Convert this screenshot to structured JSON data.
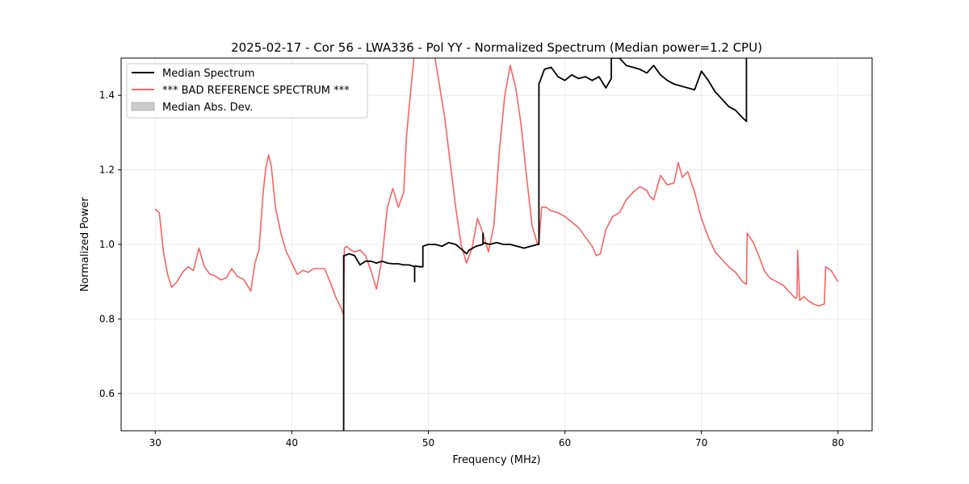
{
  "chart_data": {
    "type": "line",
    "title": "2025-02-17 - Cor 56 - LWA336 - Pol YY - Normalized Spectrum (Median power=1.2 CPU)",
    "xlabel": "Frequency (MHz)",
    "ylabel": "Normalized Power",
    "xlim": [
      27.5,
      82.5
    ],
    "ylim": [
      0.5,
      1.5
    ],
    "xticks": [
      30,
      40,
      50,
      60,
      70,
      80
    ],
    "yticks": [
      0.6,
      0.8,
      1.0,
      1.2,
      1.4
    ],
    "grid": true,
    "legend_position": "top-left",
    "series": [
      {
        "name": "Median Spectrum",
        "color": "#000000",
        "x": [
          43.8,
          43.8,
          43.85,
          44.2,
          44.6,
          45.0,
          45.4,
          45.8,
          46.2,
          46.6,
          47.0,
          47.4,
          47.8,
          48.2,
          48.6,
          49.0,
          49.0,
          49.0,
          49.4,
          49.6,
          49.6,
          50.0,
          50.5,
          51.0,
          51.5,
          52.0,
          52.5,
          52.8,
          53.0,
          53.5,
          54.0,
          54.0,
          54.0,
          54.5,
          55.0,
          55.5,
          56.0,
          56.5,
          57.0,
          57.5,
          58.0,
          58.1,
          58.1,
          58.5,
          59.0,
          59.5,
          60.0,
          60.5,
          61.0,
          61.5,
          62.0,
          62.5,
          63.0,
          63.4,
          63.4,
          64.0,
          64.5,
          65.0,
          65.5,
          66.0,
          66.5,
          67.0,
          67.5,
          68.0,
          68.5,
          69.0,
          69.5,
          70.0,
          70.5,
          71.0,
          71.5,
          72.0,
          72.5,
          73.0,
          73.3,
          73.3
        ],
        "y": [
          0.5,
          0.97,
          0.97,
          0.975,
          0.97,
          0.945,
          0.955,
          0.955,
          0.95,
          0.955,
          0.95,
          0.948,
          0.948,
          0.945,
          0.945,
          0.94,
          0.9,
          0.942,
          0.94,
          0.94,
          0.995,
          1.0,
          1.0,
          0.995,
          1.005,
          1.0,
          0.985,
          0.975,
          0.985,
          0.995,
          1.0,
          1.03,
          1.005,
          1.0,
          1.005,
          1.0,
          1.0,
          0.995,
          0.99,
          0.995,
          1.0,
          1.0,
          1.43,
          1.47,
          1.475,
          1.45,
          1.44,
          1.455,
          1.445,
          1.45,
          1.44,
          1.45,
          1.42,
          1.445,
          1.5,
          1.5,
          1.48,
          1.475,
          1.47,
          1.46,
          1.48,
          1.455,
          1.44,
          1.43,
          1.425,
          1.42,
          1.415,
          1.465,
          1.44,
          1.41,
          1.39,
          1.37,
          1.36,
          1.34,
          1.33,
          1.5
        ]
      },
      {
        "name": "*** BAD REFERENCE SPECTRUM ***",
        "color": "#f86464",
        "x": [
          30.0,
          30.3,
          30.6,
          30.9,
          31.2,
          31.6,
          32.0,
          32.4,
          32.8,
          33.2,
          33.6,
          34.0,
          34.4,
          34.8,
          35.2,
          35.6,
          36.0,
          36.5,
          37.0,
          37.3,
          37.6,
          37.9,
          38.1,
          38.3,
          38.5,
          38.8,
          39.2,
          39.6,
          40.0,
          40.4,
          40.8,
          41.2,
          41.6,
          42.0,
          42.4,
          42.8,
          43.2,
          43.6,
          43.8,
          43.85,
          44.0,
          44.3,
          44.6,
          45.0,
          45.4,
          45.8,
          46.2,
          46.6,
          47.0,
          47.4,
          47.8,
          48.2,
          48.4,
          48.6,
          49.0,
          49.2,
          49.4,
          49.7,
          50.0,
          50.4,
          50.8,
          51.2,
          51.6,
          52.0,
          52.4,
          52.8,
          53.2,
          53.6,
          54.0,
          54.4,
          54.8,
          55.2,
          55.6,
          56.0,
          56.4,
          56.8,
          57.2,
          57.6,
          58.0,
          58.1,
          58.3,
          58.6,
          59.0,
          59.5,
          60.0,
          60.5,
          61.0,
          61.5,
          62.0,
          62.3,
          62.6,
          63.0,
          63.5,
          64.0,
          64.5,
          65.0,
          65.5,
          66.0,
          66.2,
          66.5,
          67.0,
          67.5,
          68.0,
          68.3,
          68.6,
          69.0,
          69.5,
          70.0,
          70.5,
          71.0,
          71.5,
          72.0,
          72.5,
          73.0,
          73.3,
          73.35,
          73.8,
          74.2,
          74.6,
          75.0,
          75.5,
          76.0,
          76.5,
          76.9,
          77.0,
          77.05,
          77.2,
          77.5,
          77.8,
          78.2,
          78.6,
          79.0,
          79.1,
          79.5,
          80.0
        ],
        "y": [
          1.095,
          1.085,
          0.98,
          0.92,
          0.885,
          0.9,
          0.925,
          0.94,
          0.93,
          0.99,
          0.94,
          0.92,
          0.915,
          0.905,
          0.91,
          0.935,
          0.915,
          0.905,
          0.875,
          0.95,
          0.985,
          1.14,
          1.205,
          1.24,
          1.21,
          1.1,
          1.03,
          0.98,
          0.95,
          0.92,
          0.93,
          0.925,
          0.935,
          0.935,
          0.935,
          0.9,
          0.86,
          0.83,
          0.81,
          0.99,
          0.995,
          0.985,
          0.98,
          0.985,
          0.97,
          0.93,
          0.88,
          0.96,
          1.1,
          1.15,
          1.1,
          1.14,
          1.29,
          1.37,
          1.52,
          1.55,
          1.5,
          1.55,
          1.55,
          1.52,
          1.43,
          1.34,
          1.22,
          1.1,
          1.0,
          0.95,
          0.99,
          1.07,
          1.03,
          0.98,
          1.05,
          1.25,
          1.4,
          1.48,
          1.42,
          1.32,
          1.18,
          1.05,
          1.0,
          1.005,
          1.1,
          1.1,
          1.09,
          1.085,
          1.075,
          1.06,
          1.045,
          1.02,
          0.995,
          0.97,
          0.975,
          1.04,
          1.075,
          1.085,
          1.12,
          1.14,
          1.155,
          1.145,
          1.13,
          1.12,
          1.185,
          1.16,
          1.165,
          1.22,
          1.18,
          1.195,
          1.14,
          1.07,
          1.02,
          0.98,
          0.96,
          0.94,
          0.925,
          0.9,
          0.893,
          1.03,
          1.005,
          0.97,
          0.93,
          0.91,
          0.9,
          0.89,
          0.87,
          0.855,
          0.86,
          0.985,
          0.85,
          0.86,
          0.85,
          0.84,
          0.835,
          0.84,
          0.94,
          0.93,
          0.9
        ]
      }
    ],
    "legend": [
      {
        "label": "Median Spectrum",
        "color": "#000000",
        "kind": "line"
      },
      {
        "label": "*** BAD REFERENCE SPECTRUM ***",
        "color": "#f86464",
        "kind": "line"
      },
      {
        "label": "Median Abs. Dev.",
        "color": "#cccccc",
        "kind": "patch"
      }
    ]
  }
}
